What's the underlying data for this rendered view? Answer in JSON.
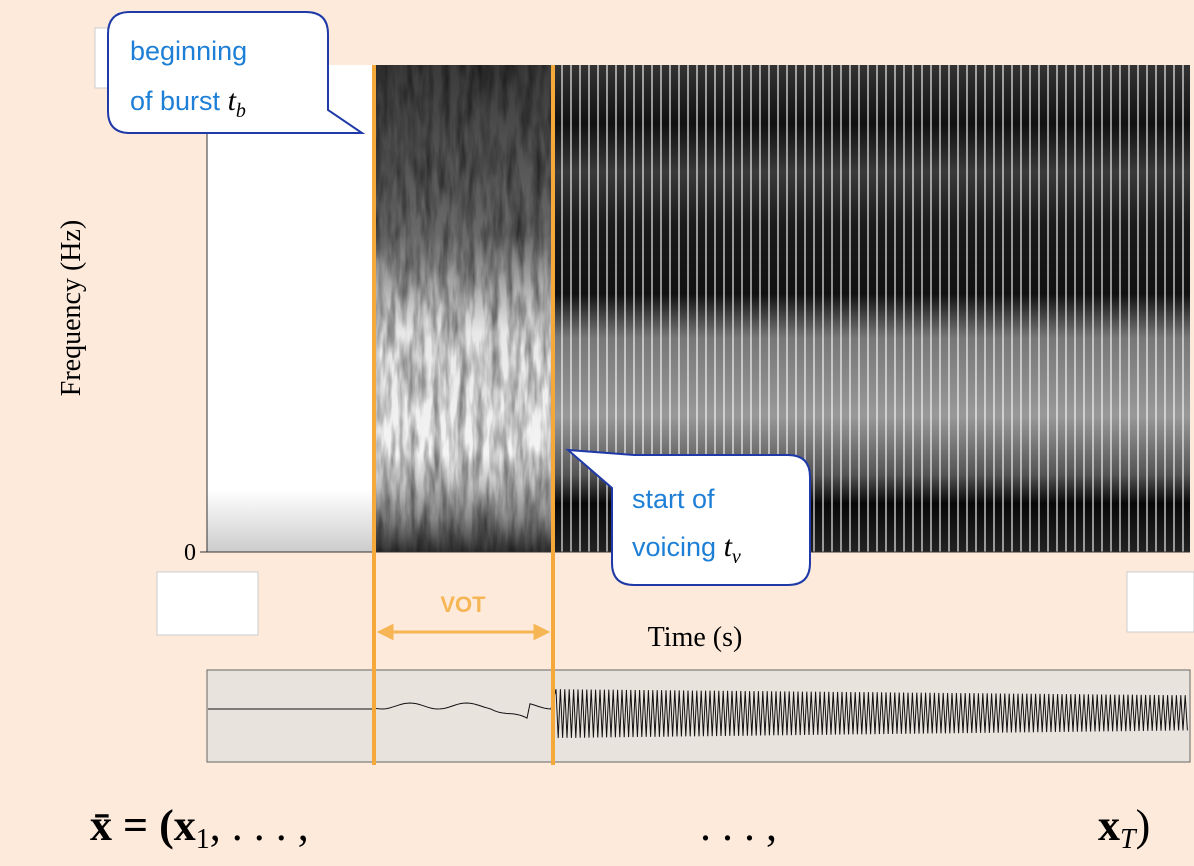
{
  "figure": {
    "y_axis_label": "Frequency (Hz)",
    "y_origin_label": "0",
    "x_axis_label": "Time (s)",
    "interval_label": "VOT",
    "burst_callout": {
      "lines": [
        "beginning",
        "of burst"
      ],
      "symbol": "t",
      "subscript": "b"
    },
    "voicing_callout": {
      "lines": [
        "start of",
        "voicing"
      ],
      "symbol": "t",
      "subscript": "v"
    },
    "formula": {
      "start": "x̄ = (x",
      "start_subscript": "1",
      "start_tail": ", . . . ,",
      "middle": ". . . ,",
      "end": "x",
      "end_subscript": "T",
      "end_tail": ")"
    }
  }
}
